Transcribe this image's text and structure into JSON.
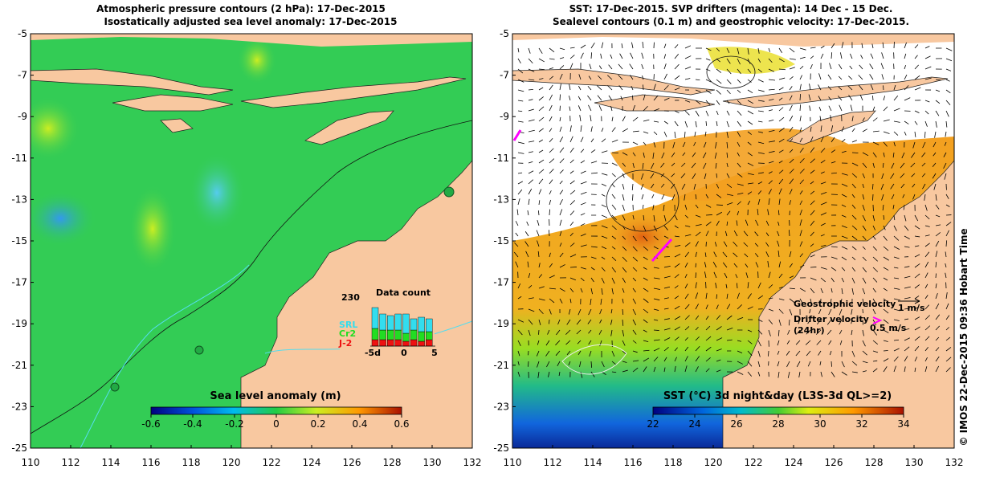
{
  "left_panel": {
    "title_line1": "Atmospheric pressure contours (2 hPa): 17-Dec-2015",
    "title_line2": "Isostatically adjusted sea level anomaly: 17-Dec-2015",
    "x_ticks": [
      "110",
      "112",
      "114",
      "116",
      "118",
      "120",
      "122",
      "124",
      "126",
      "128",
      "130",
      "132"
    ],
    "y_ticks": [
      "-5",
      "-7",
      "-9",
      "-11",
      "-13",
      "-15",
      "-17",
      "-19",
      "-21",
      "-23",
      "-25"
    ],
    "colorbar": {
      "title": "Sea level anomaly (m)",
      "ticks": [
        "-0.6",
        "-0.4",
        "-0.2",
        "0",
        "0.2",
        "0.4",
        "0.6"
      ]
    },
    "data_count": {
      "title": "Data count",
      "max_label": "230",
      "series": [
        {
          "name": "SRL",
          "color": "#33ddee"
        },
        {
          "name": "Cr2",
          "color": "#22dd22"
        },
        {
          "name": "J-2",
          "color": "#ee1111"
        }
      ],
      "x_ticks": [
        "-5d",
        "0",
        "5"
      ]
    }
  },
  "right_panel": {
    "title_line1": "SST: 17-Dec-2015. SVP drifters (magenta): 14 Dec - 15 Dec.",
    "title_line2": "Sealevel contours (0.1 m) and geostrophic velocity: 17-Dec-2015.",
    "x_ticks": [
      "110",
      "112",
      "114",
      "116",
      "118",
      "120",
      "122",
      "124",
      "126",
      "128",
      "130",
      "132"
    ],
    "y_ticks": [
      "-5",
      "-7",
      "-9",
      "-11",
      "-13",
      "-15",
      "-17",
      "-19",
      "-21",
      "-23",
      "-25"
    ],
    "legend": {
      "geostrophic_label": "Geostrophic velocity",
      "geostrophic_scale": "1 m/s",
      "drifter_label": "Drifter velocity",
      "drifter_sub": "(24hr)",
      "drifter_scale": "0.5 m/s"
    },
    "colorbar": {
      "title": "SST (°C) 3d night&day (L3S-3d QL>=2)",
      "ticks": [
        "22",
        "24",
        "26",
        "28",
        "30",
        "32",
        "34"
      ]
    }
  },
  "credit": "© IMOS 22-Dec-2015 09:36 Hobart Time",
  "colors": {
    "land": "#f8c8a0",
    "ocean_green": "#33cc55",
    "sst_orange": "#f0a020",
    "drifter": "#ff00ff"
  }
}
